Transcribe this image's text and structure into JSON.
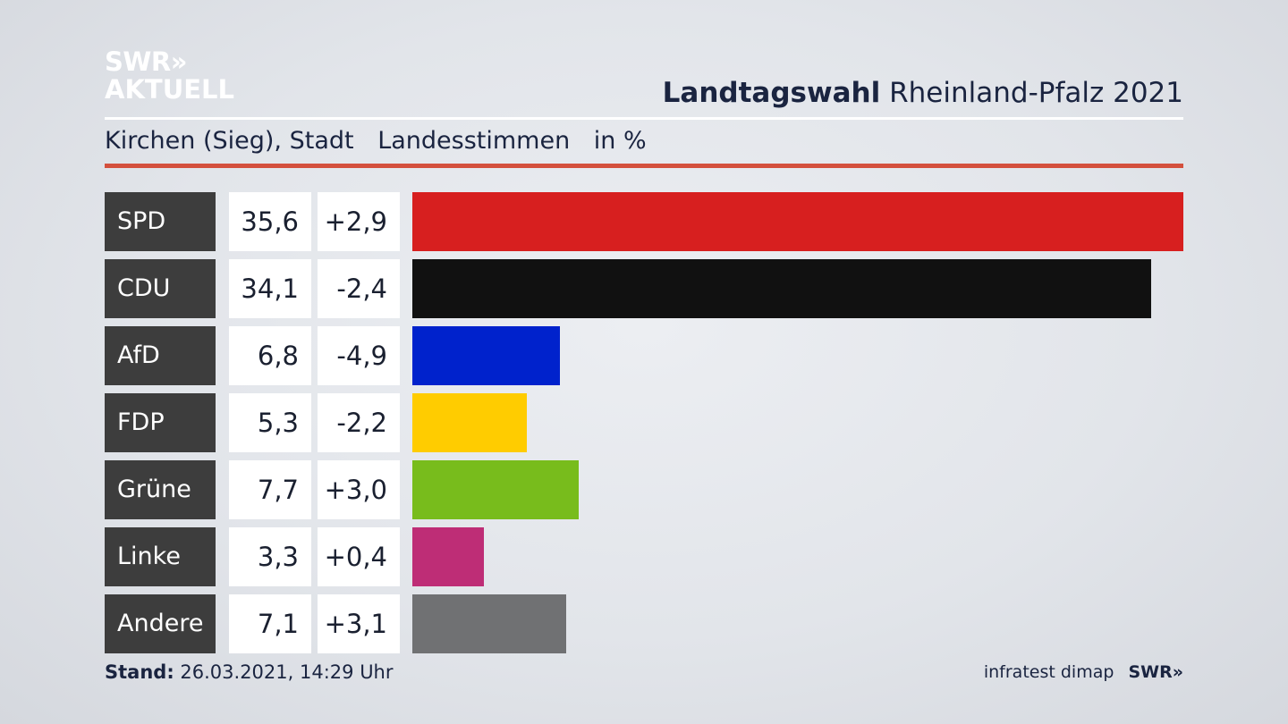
{
  "logo": {
    "line1": "SWR»",
    "line2": "AKTUELL"
  },
  "header": {
    "title_bold": "Landtagswahl",
    "title_regular": "Rheinland-Pfalz 2021"
  },
  "subheader": {
    "location": "Kirchen (Sieg), Stadt",
    "vote_type": "Landesstimmen",
    "unit": "in %"
  },
  "footer": {
    "stand_label": "Stand:",
    "stand_value": "26.03.2021, 14:29 Uhr",
    "source": "infratest dimap",
    "brand": "SWR»"
  },
  "colors": {
    "rule_red": "#d4503d",
    "party_box": "#3d3d3d"
  },
  "chart_data": {
    "type": "bar",
    "orientation": "horizontal",
    "categories": [
      "SPD",
      "CDU",
      "AfD",
      "FDP",
      "Grüne",
      "Linke",
      "Andere"
    ],
    "values": [
      35.6,
      34.1,
      6.8,
      5.3,
      7.7,
      3.3,
      7.1
    ],
    "value_labels": [
      "35,6",
      "34,1",
      "6,8",
      "5,3",
      "7,7",
      "3,3",
      "7,1"
    ],
    "changes": [
      2.9,
      -2.4,
      -4.9,
      -2.2,
      3.0,
      0.4,
      3.1
    ],
    "change_labels": [
      "+2,9",
      "-2,4",
      "-4,9",
      "-2,2",
      "+3,0",
      "+0,4",
      "+3,1"
    ],
    "bar_colors": [
      "#d71f1f",
      "#111111",
      "#0022cc",
      "#ffcc00",
      "#78bc1c",
      "#be2d76",
      "#707173"
    ],
    "xlim": [
      0,
      35.6
    ],
    "grid": false,
    "legend": "none"
  }
}
